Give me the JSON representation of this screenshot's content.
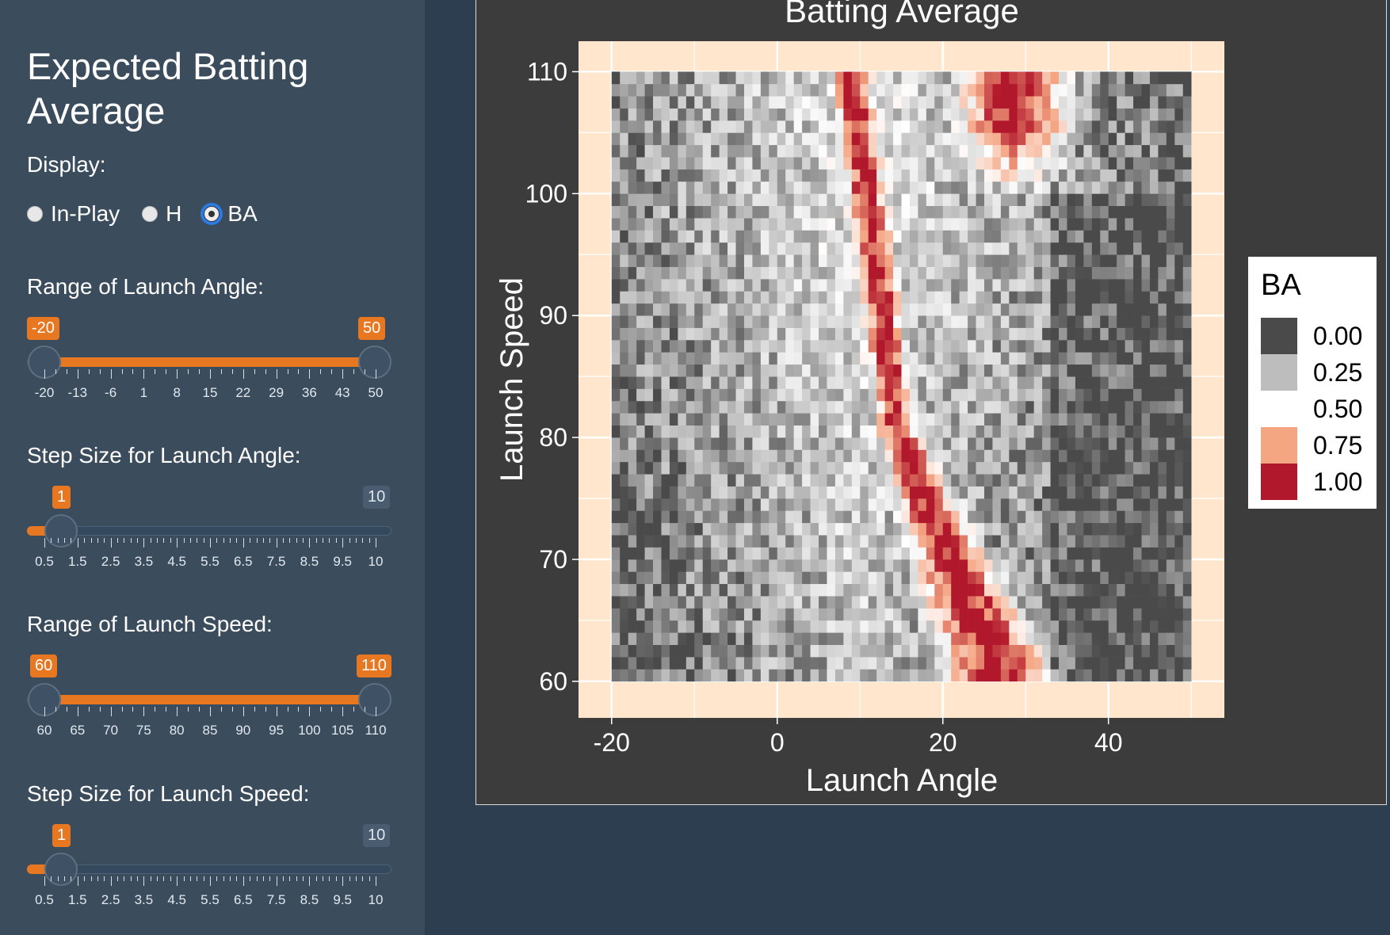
{
  "sidebar": {
    "title": "Expected Batting Average",
    "display": {
      "label": "Display:",
      "options": [
        "In-Play",
        "H",
        "BA"
      ],
      "selected": "BA"
    },
    "launch_angle_range": {
      "label": "Range of Launch Angle:",
      "min": -20,
      "max": 50,
      "from": -20,
      "to": 50,
      "from_label": "-20",
      "to_label": "50",
      "tick_labels": [
        "-20",
        "-13",
        "-6",
        "1",
        "8",
        "15",
        "22",
        "29",
        "36",
        "43",
        "50"
      ]
    },
    "launch_angle_step": {
      "label": "Step Size for Launch Angle:",
      "min": 0.5,
      "max": 10,
      "value": 1,
      "value_label": "1",
      "max_label": "10",
      "tick_labels": [
        "0.5",
        "1.5",
        "2.5",
        "3.5",
        "4.5",
        "5.5",
        "6.5",
        "7.5",
        "8.5",
        "9.5",
        "10"
      ]
    },
    "launch_speed_range": {
      "label": "Range of Launch Speed:",
      "min": 60,
      "max": 110,
      "from": 60,
      "to": 110,
      "from_label": "60",
      "to_label": "110",
      "tick_labels": [
        "60",
        "65",
        "70",
        "75",
        "80",
        "85",
        "90",
        "95",
        "100",
        "105",
        "110"
      ]
    },
    "launch_speed_step": {
      "label": "Step Size for Launch Speed:",
      "min": 0.5,
      "max": 10,
      "value": 1,
      "value_label": "1",
      "max_label": "10",
      "tick_labels": [
        "0.5",
        "1.5",
        "2.5",
        "3.5",
        "4.5",
        "5.5",
        "6.5",
        "7.5",
        "8.5",
        "9.5",
        "10"
      ]
    }
  },
  "colors": {
    "accent": "#e87722",
    "sidebar_bg": "#3b4c5d",
    "page_bg": "#2c3e50",
    "panel_bg": "#3c3c3c",
    "plot_bg": "#ffe6cc"
  },
  "chart_data": {
    "type": "heatmap",
    "title": "Batting Average",
    "xlabel": "Launch Angle",
    "ylabel": "Launch Speed",
    "xlim": [
      -24,
      54
    ],
    "ylim": [
      57,
      112.5
    ],
    "x_range": [
      -20,
      50
    ],
    "y_range": [
      60,
      110
    ],
    "x_ticks": [
      -20,
      0,
      20,
      40
    ],
    "y_ticks": [
      60,
      70,
      80,
      90,
      100,
      110
    ],
    "grid": true,
    "legend": {
      "title": "BA",
      "placement": "right",
      "entries": [
        {
          "value": 0.0,
          "label": "0.00",
          "color": "#4a4a4a"
        },
        {
          "value": 0.25,
          "label": "0.25",
          "color": "#bdbdbd"
        },
        {
          "value": 0.5,
          "label": "0.50",
          "color": "#ffffff"
        },
        {
          "value": 0.75,
          "label": "0.75",
          "color": "#f4a582"
        },
        {
          "value": 1.0,
          "label": "1.00",
          "color": "#b2182b"
        }
      ]
    }
  }
}
